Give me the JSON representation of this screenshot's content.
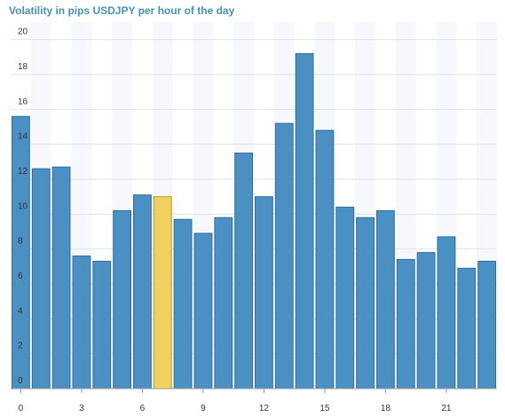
{
  "chart_data": {
    "type": "bar",
    "title": "Volatility in pips USDJPY per hour of the day",
    "xlabel": "",
    "ylabel": "",
    "x": [
      0,
      1,
      2,
      3,
      4,
      5,
      6,
      7,
      8,
      9,
      10,
      11,
      12,
      13,
      14,
      15,
      16,
      17,
      18,
      19,
      20,
      21,
      22,
      23
    ],
    "values": [
      15.6,
      12.6,
      12.7,
      7.6,
      7.3,
      10.2,
      11.1,
      11.0,
      9.7,
      8.9,
      9.8,
      13.5,
      11.0,
      15.2,
      19.2,
      14.8,
      10.4,
      9.8,
      10.2,
      7.4,
      7.8,
      8.7,
      6.9,
      7.3
    ],
    "highlight_index": 7,
    "ylim": [
      0,
      21
    ],
    "yticks": [
      0,
      2,
      4,
      6,
      8,
      10,
      12,
      14,
      16,
      18,
      20
    ],
    "xticks": [
      0,
      3,
      6,
      9,
      12,
      15,
      18,
      21
    ],
    "grid": true,
    "colors": {
      "bar": "#4a90c2",
      "bar_edge": "#2f6f9f",
      "highlight": "#f2d163",
      "highlight_edge": "#b89a2c",
      "grid": "#e2e2e2",
      "title": "#4a8fb8"
    }
  }
}
